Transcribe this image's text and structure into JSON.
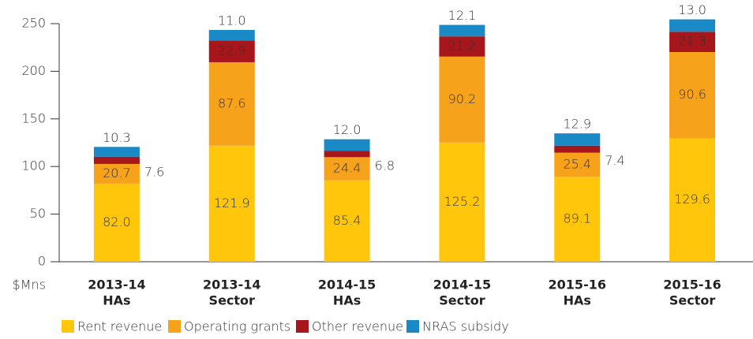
{
  "chart_data": {
    "type": "stacked_bar",
    "ylabel": "$Mns",
    "categories": [
      [
        "2013-14",
        "HAs"
      ],
      [
        "2013-14",
        "Sector"
      ],
      [
        "2014-15",
        "HAs"
      ],
      [
        "2014-15",
        "Sector"
      ],
      [
        "2015-16",
        "HAs"
      ],
      [
        "2015-16",
        "Sector"
      ]
    ],
    "series": [
      {
        "name": "Rent revenue",
        "color": "#ffc60b",
        "values": [
          82.0,
          121.9,
          85.4,
          125.2,
          89.1,
          129.6
        ],
        "value_labels": [
          "82.0",
          "121.9",
          "85.4",
          "125.2",
          "89.1",
          "129.6"
        ]
      },
      {
        "name": "Operating grants",
        "color": "#f7a21b",
        "values": [
          20.7,
          87.6,
          24.4,
          90.2,
          25.4,
          90.6
        ],
        "value_labels": [
          "20.7",
          "87.6",
          "24.4",
          "90.2",
          "25.4",
          "90.6"
        ]
      },
      {
        "name": "Other revenue",
        "color": "#a6161a",
        "values": [
          7.6,
          22.9,
          6.8,
          21.2,
          7.4,
          21.3
        ],
        "value_labels": [
          "7.6",
          "22.9",
          "6.8",
          "21.2",
          "7.4",
          "21.3"
        ]
      },
      {
        "name": "NRAS subsidy",
        "color": "#1a8ac6",
        "values": [
          10.3,
          11.0,
          12.0,
          12.1,
          12.9,
          13.0
        ],
        "value_labels": [
          "10.3",
          "11.0",
          "12.0",
          "12.1",
          "12.9",
          "13.0"
        ]
      }
    ],
    "ylim": [
      0,
      250
    ],
    "yticks": [
      0,
      50,
      100,
      150,
      200,
      250
    ],
    "legend": "bottom"
  }
}
